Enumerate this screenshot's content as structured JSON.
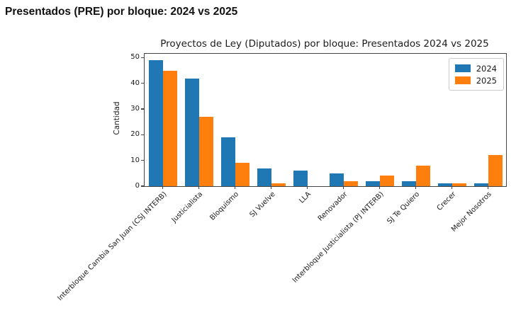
{
  "page": {
    "header_title": "Presentados (PRE) por bloque: 2024 vs 2025"
  },
  "chart_data": {
    "type": "bar",
    "title": "Proyectos de Ley (Diputados) por bloque: Presentados 2024 vs 2025",
    "xlabel": "",
    "ylabel": "Cantidad",
    "categories": [
      "Interbloque Cambia San Juan (CSJ INTERB)",
      "Justicialista",
      "Bloquismo",
      "SJ Vuelve",
      "LLA",
      "Renovador",
      "Interbloque Justicialista (PJ INTERB)",
      "SJ Te Quiero",
      "Crecer",
      "Mejor Nosotros"
    ],
    "series": [
      {
        "name": "2024",
        "color": "#1f77b4",
        "values": [
          49,
          42,
          19,
          7,
          6,
          5,
          2,
          2,
          1,
          1
        ]
      },
      {
        "name": "2025",
        "color": "#ff7f0e",
        "values": [
          45,
          27,
          9,
          1,
          0,
          2,
          4,
          8,
          1,
          12
        ]
      }
    ],
    "ylim": [
      0,
      51.5
    ],
    "yticks": [
      0,
      10,
      20,
      30,
      40,
      50
    ],
    "grid": false,
    "legend_position": "upper right",
    "x_tick_rotation": 45
  }
}
